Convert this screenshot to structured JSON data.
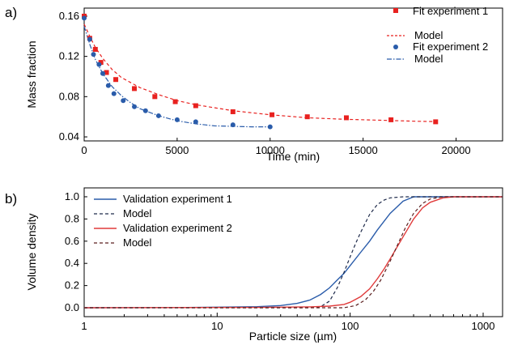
{
  "chart_data": [
    {
      "type": "scatter",
      "panel_label": "a)",
      "xlabel": "Time (min)",
      "ylabel": "Mass fraction",
      "xlim": [
        0,
        22500
      ],
      "ylim": [
        0.036,
        0.168
      ],
      "x_ticks": [
        "0",
        "5000",
        "10000",
        "15000",
        "20000"
      ],
      "y_ticks": [
        "0.04",
        "0.08",
        "0.12",
        "0.16"
      ],
      "legend_position": "top-right",
      "grid": false,
      "series": [
        {
          "name": "Fit experiment 1",
          "kind": "points",
          "marker": "square",
          "color": "#e8211f",
          "x": [
            0,
            300,
            600,
            900,
            1200,
            1700,
            2700,
            3800,
            4900,
            6000,
            8000,
            10100,
            12000,
            14100,
            16500,
            18900
          ],
          "y": [
            0.16,
            0.138,
            0.127,
            0.114,
            0.104,
            0.097,
            0.088,
            0.08,
            0.075,
            0.071,
            0.065,
            0.062,
            0.06,
            0.059,
            0.057,
            0.055
          ]
        },
        {
          "name": "Model",
          "kind": "line",
          "dash": "dashed",
          "color": "#e8211f",
          "x": [
            0,
            300,
            600,
            1000,
            1500,
            2000,
            3000,
            4000,
            5000,
            6000,
            8000,
            10000,
            12000,
            14000,
            16000,
            18000,
            19000
          ],
          "y": [
            0.152,
            0.14,
            0.129,
            0.118,
            0.107,
            0.099,
            0.089,
            0.082,
            0.076,
            0.072,
            0.066,
            0.062,
            0.059,
            0.0575,
            0.0565,
            0.0555,
            0.0552
          ]
        },
        {
          "name": "Fit experiment 2",
          "kind": "points",
          "marker": "circle",
          "color": "#2a5caa",
          "x": [
            0,
            300,
            500,
            800,
            1000,
            1300,
            1600,
            2100,
            2700,
            3300,
            4000,
            5000,
            6000,
            8000,
            10000
          ],
          "y": [
            0.158,
            0.137,
            0.122,
            0.112,
            0.103,
            0.091,
            0.083,
            0.076,
            0.07,
            0.066,
            0.061,
            0.057,
            0.055,
            0.052,
            0.05
          ]
        },
        {
          "name": "Model",
          "kind": "line",
          "dash": "dashdot",
          "color": "#2a5caa",
          "x": [
            0,
            300,
            600,
            1000,
            1500,
            2000,
            2500,
            3000,
            4000,
            5000,
            6000,
            7000,
            8000,
            9000,
            10000
          ],
          "y": [
            0.15,
            0.132,
            0.117,
            0.103,
            0.09,
            0.081,
            0.074,
            0.068,
            0.061,
            0.056,
            0.053,
            0.051,
            0.0505,
            0.05,
            0.05
          ]
        }
      ]
    },
    {
      "type": "line",
      "panel_label": "b)",
      "xlabel": "Particle size (µm)",
      "ylabel": "Volume density",
      "x_scale": "log",
      "xlim": [
        1,
        1400
      ],
      "ylim": [
        -0.08,
        1.08
      ],
      "x_ticks": [
        "1",
        "10",
        "100",
        "1000"
      ],
      "y_ticks": [
        "0.0",
        "0.2",
        "0.4",
        "0.6",
        "0.8",
        "1.0"
      ],
      "legend_position": "top-left",
      "grid": false,
      "series": [
        {
          "name": "Validation experiment 1",
          "dash": "solid",
          "color": "#2a5caa",
          "x": [
            1,
            5,
            10,
            20,
            30,
            40,
            50,
            60,
            70,
            80,
            90,
            100,
            120,
            140,
            160,
            200,
            250,
            300,
            400,
            1400
          ],
          "y": [
            0,
            0.002,
            0.005,
            0.01,
            0.02,
            0.04,
            0.07,
            0.12,
            0.18,
            0.25,
            0.31,
            0.38,
            0.5,
            0.6,
            0.7,
            0.85,
            0.96,
            1.0,
            1.0,
            1.0
          ]
        },
        {
          "name": "Model",
          "dash": "dashed",
          "color": "#1e2a4a",
          "x": [
            1,
            50,
            60,
            70,
            80,
            90,
            100,
            110,
            120,
            140,
            160,
            180,
            200,
            250,
            1400
          ],
          "y": [
            0,
            0,
            0.01,
            0.06,
            0.18,
            0.32,
            0.46,
            0.58,
            0.68,
            0.84,
            0.93,
            0.97,
            0.99,
            1.0,
            1.0
          ]
        },
        {
          "name": "Validation experiment 2",
          "dash": "solid",
          "color": "#e03a3a",
          "x": [
            1,
            20,
            50,
            70,
            90,
            100,
            120,
            140,
            160,
            180,
            200,
            250,
            300,
            350,
            400,
            500,
            600,
            700,
            1400
          ],
          "y": [
            0,
            0.003,
            0.008,
            0.015,
            0.03,
            0.05,
            0.1,
            0.17,
            0.26,
            0.35,
            0.44,
            0.64,
            0.8,
            0.9,
            0.95,
            0.99,
            1.0,
            1.0,
            1.0
          ]
        },
        {
          "name": "Model",
          "dash": "dashed",
          "color": "#5a1f1f",
          "x": [
            1,
            90,
            110,
            130,
            150,
            170,
            200,
            230,
            260,
            300,
            350,
            400,
            500,
            1400
          ],
          "y": [
            0,
            0,
            0.02,
            0.07,
            0.15,
            0.25,
            0.42,
            0.58,
            0.72,
            0.85,
            0.94,
            0.98,
            1.0,
            1.0
          ]
        }
      ]
    }
  ]
}
